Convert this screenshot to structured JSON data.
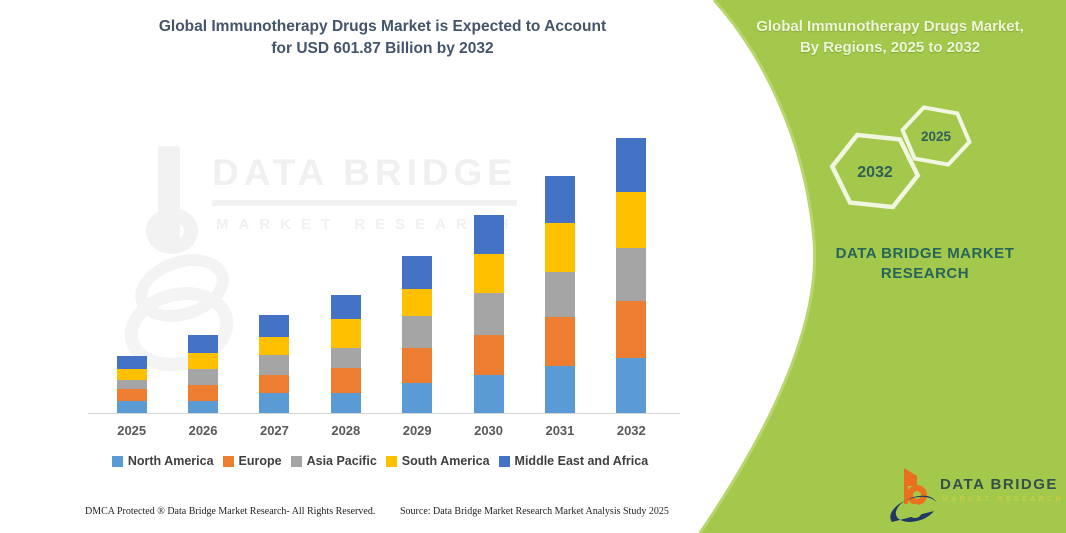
{
  "header": {
    "title_line1": "Global Immunotherapy Drugs Market is Expected to Account",
    "title_line2": "for USD 601.87 Billion by 2032"
  },
  "side_panel": {
    "panel_color": "#a3c84b",
    "title_line1": "Global Immunotherapy Drugs Market,",
    "title_line2": "By Regions, 2025 to 2032",
    "hexagons": [
      {
        "label": "2032"
      },
      {
        "label": "2025"
      }
    ],
    "brand_line1": "DATA BRIDGE MARKET",
    "brand_line2": "RESEARCH"
  },
  "watermark": {
    "line1": "DATA BRIDGE",
    "line2": "MARKET RESEARCH"
  },
  "chart_data": {
    "type": "bar",
    "stacked": true,
    "title": "Global Immunotherapy Drugs Market, By Regions, 2025 to 2032",
    "unit": "USD Billion",
    "note": "Values estimated from bar heights; only labeled value is 2032 total = USD 601.87 Billion",
    "categories": [
      "2025",
      "2026",
      "2027",
      "2028",
      "2029",
      "2030",
      "2031",
      "2032"
    ],
    "series": [
      {
        "name": "North America",
        "color": "#5B9BD5",
        "values": [
          26,
          26,
          44,
          44,
          65,
          83,
          102,
          120
        ]
      },
      {
        "name": "Europe",
        "color": "#ED7D31",
        "values": [
          27,
          35,
          39,
          55,
          76,
          87,
          107,
          124
        ]
      },
      {
        "name": "Asia Pacific",
        "color": "#A5A5A5",
        "values": [
          20,
          35,
          44,
          44,
          70,
          92,
          100,
          116
        ]
      },
      {
        "name": "South America",
        "color": "#FFC000",
        "values": [
          23,
          35,
          39,
          63,
          61,
          85,
          105,
          123.87
        ]
      },
      {
        "name": "Middle East and Africa",
        "color": "#4472C4",
        "values": [
          28,
          39,
          48,
          52,
          72,
          85,
          103,
          118
        ]
      }
    ],
    "totals": [
      124,
      170,
      214,
      258,
      344,
      432,
      517,
      601.87
    ],
    "ylim": [
      0,
      640
    ],
    "grid": false,
    "legend_position": "bottom"
  },
  "footer": {
    "dmca": "DMCA Protected ® Data Bridge Market Research- All Rights Reserved.",
    "source": "Source: Data Bridge Market Research Market Analysis Study 2025"
  },
  "logo": {
    "name": "DATA BRIDGE",
    "subtitle": "MARKET RESEARCH"
  }
}
